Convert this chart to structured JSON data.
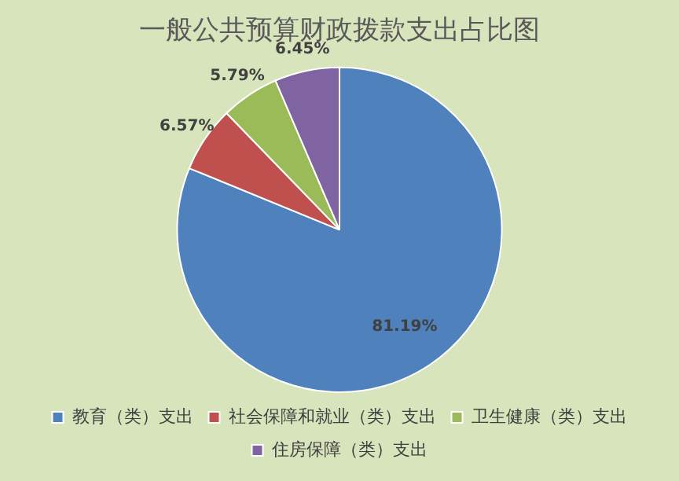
{
  "chart_data": {
    "type": "pie",
    "title": "一般公共预算财政拨款支出占比图",
    "categories": [
      "教育（类）支出",
      "社会保障和就业（类）支出",
      "卫生健康（类）支出",
      "住房保障（类）支出"
    ],
    "values": [
      81.19,
      6.57,
      5.79,
      6.45
    ],
    "colors": [
      "#4f81bd",
      "#c0504d",
      "#9bbb59",
      "#8064a2"
    ],
    "value_labels": [
      "81.19%",
      "6.57%",
      "5.79%",
      "6.45%"
    ],
    "legend": "bottom"
  }
}
